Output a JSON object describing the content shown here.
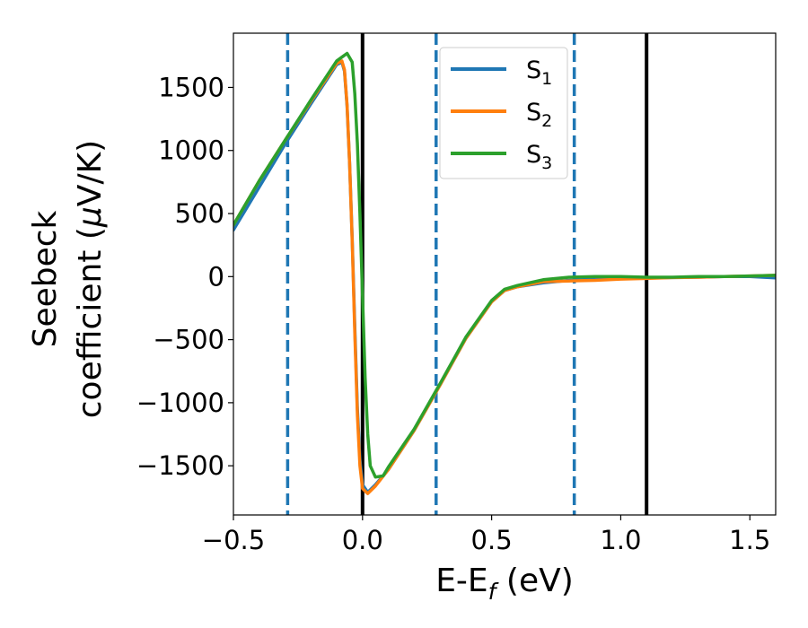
{
  "chart_data": {
    "type": "line",
    "title": "",
    "xlabel": "E-E",
    "xlabel_sub": "f",
    "xlabel_unit": " (eV)",
    "ylabel_line1": "Seebeck",
    "ylabel_line2_prefix": "coefficient  (",
    "ylabel_mu": "μ",
    "ylabel_line2_suffix": "V/K)",
    "xlim": [
      -0.5,
      1.6
    ],
    "ylim": [
      -1890,
      1930
    ],
    "xticks": [
      -0.5,
      0.0,
      0.5,
      1.0,
      1.5
    ],
    "xtick_labels": [
      "−0.5",
      "0.0",
      "0.5",
      "1.0",
      "1.5"
    ],
    "yticks": [
      -1500,
      -1000,
      -500,
      0,
      500,
      1000,
      1500
    ],
    "ytick_labels": [
      "−1500",
      "−1000",
      "−500",
      "0",
      "500",
      "1000",
      "1500"
    ],
    "grid": false,
    "legend_position": "top-center",
    "vlines": [
      {
        "x": -0.29,
        "style": "dashed",
        "color": "#1f77b4"
      },
      {
        "x": 0.0,
        "style": "solid",
        "color": "#000000"
      },
      {
        "x": 0.285,
        "style": "dashed",
        "color": "#1f77b4"
      },
      {
        "x": 0.82,
        "style": "dashed",
        "color": "#1f77b4"
      },
      {
        "x": 1.1,
        "style": "solid",
        "color": "#000000"
      }
    ],
    "series": [
      {
        "name": "S",
        "name_sub": "1",
        "color": "#1f77b4",
        "points": [
          [
            -0.5,
            370
          ],
          [
            -0.4,
            710
          ],
          [
            -0.3,
            1050
          ],
          [
            -0.2,
            1370
          ],
          [
            -0.1,
            1680
          ],
          [
            -0.08,
            1700
          ],
          [
            -0.07,
            1630
          ],
          [
            -0.06,
            1350
          ],
          [
            -0.05,
            900
          ],
          [
            -0.04,
            300
          ],
          [
            -0.03,
            -400
          ],
          [
            -0.02,
            -1050
          ],
          [
            -0.01,
            -1450
          ],
          [
            0.0,
            -1650
          ],
          [
            0.02,
            -1710
          ],
          [
            0.05,
            -1650
          ],
          [
            0.1,
            -1530
          ],
          [
            0.2,
            -1220
          ],
          [
            0.3,
            -860
          ],
          [
            0.4,
            -490
          ],
          [
            0.5,
            -200
          ],
          [
            0.55,
            -110
          ],
          [
            0.6,
            -80
          ],
          [
            0.7,
            -50
          ],
          [
            0.8,
            -30
          ],
          [
            0.9,
            -20
          ],
          [
            1.0,
            -15
          ],
          [
            1.1,
            -10
          ],
          [
            1.2,
            -8
          ],
          [
            1.3,
            -5
          ],
          [
            1.4,
            0
          ],
          [
            1.5,
            0
          ],
          [
            1.6,
            -10
          ]
        ]
      },
      {
        "name": "S",
        "name_sub": "2",
        "color": "#ff7f0e",
        "points": [
          [
            -0.5,
            410
          ],
          [
            -0.4,
            760
          ],
          [
            -0.3,
            1080
          ],
          [
            -0.2,
            1390
          ],
          [
            -0.1,
            1690
          ],
          [
            -0.08,
            1710
          ],
          [
            -0.07,
            1640
          ],
          [
            -0.06,
            1360
          ],
          [
            -0.05,
            900
          ],
          [
            -0.04,
            280
          ],
          [
            -0.03,
            -450
          ],
          [
            -0.02,
            -1100
          ],
          [
            -0.01,
            -1500
          ],
          [
            0.0,
            -1680
          ],
          [
            0.02,
            -1720
          ],
          [
            0.05,
            -1660
          ],
          [
            0.1,
            -1530
          ],
          [
            0.2,
            -1220
          ],
          [
            0.3,
            -860
          ],
          [
            0.4,
            -490
          ],
          [
            0.5,
            -200
          ],
          [
            0.55,
            -110
          ],
          [
            0.6,
            -80
          ],
          [
            0.7,
            -40
          ],
          [
            0.8,
            -35
          ],
          [
            0.9,
            -30
          ],
          [
            1.0,
            -20
          ],
          [
            1.1,
            -15
          ],
          [
            1.2,
            -8
          ],
          [
            1.3,
            -5
          ],
          [
            1.4,
            0
          ],
          [
            1.5,
            5
          ],
          [
            1.6,
            10
          ]
        ]
      },
      {
        "name": "S",
        "name_sub": "3",
        "color": "#2ca02c",
        "points": [
          [
            -0.5,
            410
          ],
          [
            -0.4,
            760
          ],
          [
            -0.3,
            1080
          ],
          [
            -0.2,
            1400
          ],
          [
            -0.1,
            1710
          ],
          [
            -0.06,
            1770
          ],
          [
            -0.04,
            1700
          ],
          [
            -0.03,
            1450
          ],
          [
            -0.02,
            1050
          ],
          [
            -0.01,
            500
          ],
          [
            0.0,
            -150
          ],
          [
            0.01,
            -800
          ],
          [
            0.02,
            -1250
          ],
          [
            0.03,
            -1500
          ],
          [
            0.05,
            -1590
          ],
          [
            0.08,
            -1580
          ],
          [
            0.1,
            -1510
          ],
          [
            0.2,
            -1210
          ],
          [
            0.3,
            -850
          ],
          [
            0.4,
            -480
          ],
          [
            0.5,
            -190
          ],
          [
            0.55,
            -100
          ],
          [
            0.6,
            -70
          ],
          [
            0.7,
            -25
          ],
          [
            0.8,
            -5
          ],
          [
            0.9,
            0
          ],
          [
            1.0,
            0
          ],
          [
            1.1,
            -5
          ],
          [
            1.2,
            -5
          ],
          [
            1.3,
            0
          ],
          [
            1.4,
            0
          ],
          [
            1.5,
            5
          ],
          [
            1.6,
            10
          ]
        ]
      }
    ]
  }
}
